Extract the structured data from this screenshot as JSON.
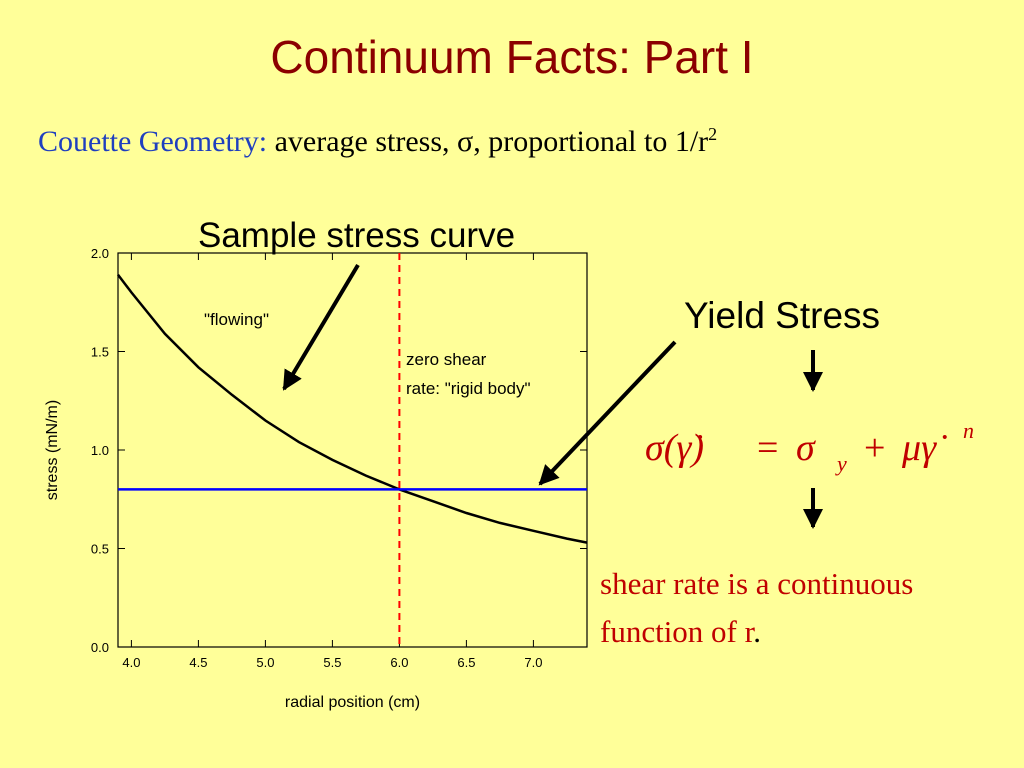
{
  "slide": {
    "title": "Continuum Facts: Part I",
    "subtitle_lead": "Couette Geometry:",
    "subtitle_rest": " average stress, σ, proportional to 1/r",
    "subtitle_exponent": "2",
    "chart_caption": "Sample stress curve",
    "yield_label": "Yield Stress",
    "conclusion_text": "shear rate is a continuous function of r",
    "conclusion_punct": "."
  },
  "equation": {
    "lhs": "σ(γ̇)",
    "equals": "=",
    "sigma": "σ",
    "yield_sub": "y",
    "plus": "+",
    "rate_term": "μγ̇",
    "power": "n"
  },
  "colors": {
    "background": "#FFFF99",
    "title": "#8B0000",
    "subtitle_lead": "#1F3FBF",
    "conclusion": "#C00000",
    "yield_line": "#0000FF",
    "boundary_line": "#FF0000",
    "curve": "#000000",
    "arrow": "#000000"
  },
  "chart_data": {
    "type": "line",
    "title": "",
    "xlabel": "radial position (cm)",
    "ylabel": "stress (mN/m)",
    "xlim": [
      3.9,
      7.4
    ],
    "ylim": [
      0.0,
      2.0
    ],
    "x_ticks": [
      "4.0",
      "4.5",
      "5.0",
      "5.5",
      "6.0",
      "6.5",
      "7.0"
    ],
    "y_ticks": [
      "0.0",
      "0.5",
      "1.0",
      "1.5",
      "2.0"
    ],
    "x_tick_values": [
      4.0,
      4.5,
      5.0,
      5.5,
      6.0,
      6.5,
      7.0
    ],
    "y_tick_values": [
      0.0,
      0.5,
      1.0,
      1.5,
      2.0
    ],
    "series": [
      {
        "kind": "stress curve",
        "color": "#000000",
        "x": [
          3.9,
          4.0,
          4.25,
          4.5,
          4.75,
          5.0,
          5.25,
          5.5,
          5.75,
          6.0,
          6.25,
          6.5,
          6.75,
          7.0,
          7.25,
          7.4
        ],
        "y": [
          1.89,
          1.8,
          1.59,
          1.42,
          1.28,
          1.15,
          1.04,
          0.95,
          0.87,
          0.8,
          0.74,
          0.68,
          0.63,
          0.59,
          0.55,
          0.53
        ]
      },
      {
        "kind": "yield stress line",
        "color": "#0000FF",
        "x": [
          3.9,
          7.4
        ],
        "y": [
          0.8,
          0.8
        ]
      }
    ],
    "vertical_line": {
      "x": 6.0,
      "color": "#FF0000",
      "dashed": true
    },
    "annotations": [
      "\"flowing\"",
      "zero shear",
      "rate: \"rigid body\""
    ]
  }
}
